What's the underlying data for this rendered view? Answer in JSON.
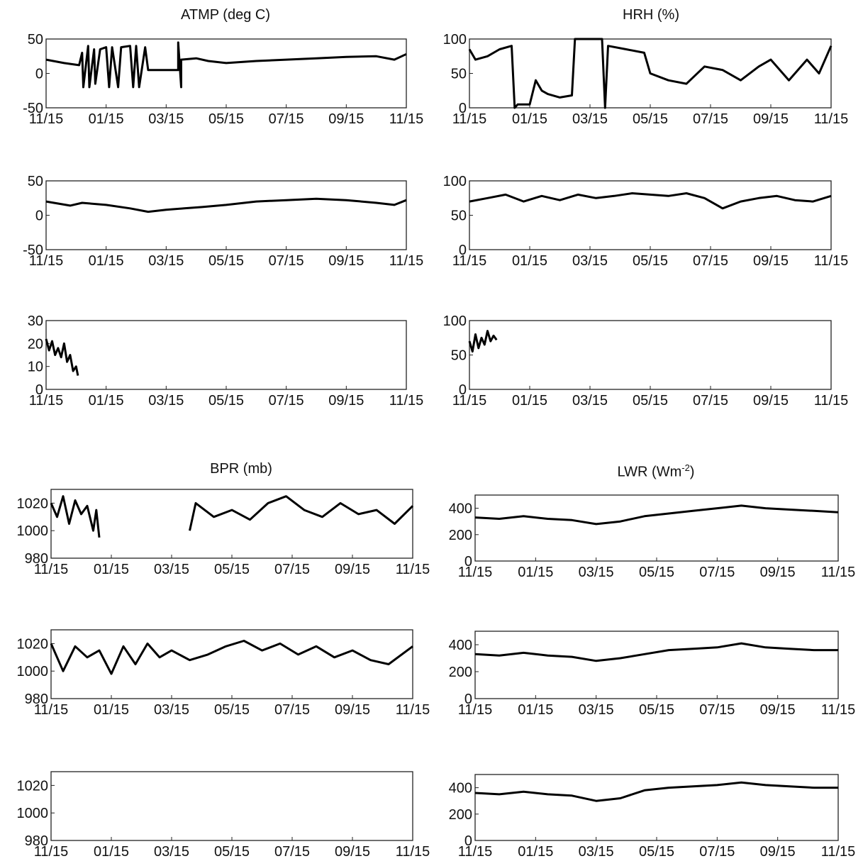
{
  "titles": {
    "atmp": "ATMP (deg C)",
    "hrh": "HRH (%)",
    "bpr": "BPR (mb)",
    "lwr_base": "LWR (Wm",
    "lwr_sup": "-2",
    "lwr_close": ")"
  },
  "chart_data": [
    {
      "id": "atmp1",
      "type": "line",
      "x": [
        "11/15",
        "01/15",
        "03/15",
        "05/15",
        "07/15",
        "09/15",
        "11/15"
      ],
      "ylim": [
        -50,
        50
      ],
      "yticks": [
        "50",
        "0",
        "-50"
      ],
      "series": [
        {
          "points": [
            [
              0,
              20
            ],
            [
              0.3,
              15
            ],
            [
              0.55,
              12
            ],
            [
              0.6,
              30
            ],
            [
              0.62,
              -20
            ],
            [
              0.7,
              40
            ],
            [
              0.72,
              -20
            ],
            [
              0.8,
              35
            ],
            [
              0.82,
              -15
            ],
            [
              0.9,
              35
            ],
            [
              1.0,
              38
            ],
            [
              1.05,
              -20
            ],
            [
              1.1,
              38
            ],
            [
              1.2,
              -20
            ],
            [
              1.25,
              38
            ],
            [
              1.4,
              40
            ],
            [
              1.45,
              -20
            ],
            [
              1.5,
              40
            ],
            [
              1.55,
              -20
            ],
            [
              1.65,
              38
            ],
            [
              1.7,
              5
            ],
            [
              2.2,
              5
            ],
            [
              2.2,
              45
            ],
            [
              2.25,
              -20
            ],
            [
              2.25,
              20
            ],
            [
              2.5,
              22
            ],
            [
              2.7,
              18
            ],
            [
              3.0,
              15
            ],
            [
              3.5,
              18
            ],
            [
              4.0,
              20
            ],
            [
              4.5,
              22
            ],
            [
              5.0,
              24
            ],
            [
              5.5,
              25
            ],
            [
              5.8,
              20
            ],
            [
              6.0,
              28
            ]
          ]
        }
      ]
    },
    {
      "id": "atmp2",
      "type": "line",
      "x": [
        "11/15",
        "01/15",
        "03/15",
        "05/15",
        "07/15",
        "09/15",
        "11/15"
      ],
      "ylim": [
        -50,
        50
      ],
      "yticks": [
        "50",
        "0",
        "-50"
      ],
      "series": [
        {
          "points": [
            [
              0,
              20
            ],
            [
              0.4,
              14
            ],
            [
              0.6,
              18
            ],
            [
              1.0,
              15
            ],
            [
              1.4,
              10
            ],
            [
              1.7,
              5
            ],
            [
              2.0,
              8
            ],
            [
              2.3,
              10
            ],
            [
              2.6,
              12
            ],
            [
              3.0,
              15
            ],
            [
              3.5,
              20
            ],
            [
              4.0,
              22
            ],
            [
              4.5,
              24
            ],
            [
              5.0,
              22
            ],
            [
              5.5,
              18
            ],
            [
              5.8,
              15
            ],
            [
              6.0,
              22
            ]
          ]
        }
      ]
    },
    {
      "id": "atmp3",
      "type": "line",
      "x": [
        "11/15",
        "01/15",
        "03/15",
        "05/15",
        "07/15",
        "09/15",
        "11/15"
      ],
      "ylim": [
        0,
        30
      ],
      "yticks": [
        "30",
        "20",
        "10",
        "0"
      ],
      "series": [
        {
          "points": [
            [
              0,
              22
            ],
            [
              0.05,
              17
            ],
            [
              0.1,
              21
            ],
            [
              0.15,
              15
            ],
            [
              0.2,
              18
            ],
            [
              0.25,
              14
            ],
            [
              0.3,
              20
            ],
            [
              0.35,
              12
            ],
            [
              0.4,
              15
            ],
            [
              0.45,
              8
            ],
            [
              0.5,
              10
            ],
            [
              0.53,
              6
            ]
          ]
        }
      ]
    },
    {
      "id": "hrh1",
      "type": "line",
      "x": [
        "11/15",
        "01/15",
        "03/15",
        "05/15",
        "07/15",
        "09/15",
        "11/15"
      ],
      "ylim": [
        0,
        100
      ],
      "yticks": [
        "100",
        "50",
        "0"
      ],
      "series": [
        {
          "points": [
            [
              0,
              85
            ],
            [
              0.1,
              70
            ],
            [
              0.3,
              75
            ],
            [
              0.5,
              85
            ],
            [
              0.7,
              90
            ],
            [
              0.75,
              0
            ],
            [
              0.8,
              5
            ],
            [
              1.0,
              5
            ],
            [
              1.1,
              40
            ],
            [
              1.2,
              25
            ],
            [
              1.3,
              20
            ],
            [
              1.5,
              15
            ],
            [
              1.7,
              18
            ],
            [
              1.75,
              110
            ],
            [
              2.2,
              110
            ],
            [
              2.25,
              0
            ],
            [
              2.3,
              90
            ],
            [
              2.6,
              85
            ],
            [
              2.9,
              80
            ],
            [
              3.0,
              50
            ],
            [
              3.3,
              40
            ],
            [
              3.6,
              35
            ],
            [
              3.9,
              60
            ],
            [
              4.2,
              55
            ],
            [
              4.5,
              40
            ],
            [
              4.8,
              60
            ],
            [
              5.0,
              70
            ],
            [
              5.3,
              40
            ],
            [
              5.6,
              70
            ],
            [
              5.8,
              50
            ],
            [
              6.0,
              90
            ]
          ]
        }
      ]
    },
    {
      "id": "hrh2",
      "type": "line",
      "x": [
        "11/15",
        "01/15",
        "03/15",
        "05/15",
        "07/15",
        "09/15",
        "11/15"
      ],
      "ylim": [
        0,
        100
      ],
      "yticks": [
        "100",
        "50",
        "0"
      ],
      "series": [
        {
          "points": [
            [
              0,
              70
            ],
            [
              0.3,
              75
            ],
            [
              0.6,
              80
            ],
            [
              0.9,
              70
            ],
            [
              1.2,
              78
            ],
            [
              1.5,
              72
            ],
            [
              1.8,
              80
            ],
            [
              2.1,
              75
            ],
            [
              2.4,
              78
            ],
            [
              2.7,
              82
            ],
            [
              3.0,
              80
            ],
            [
              3.3,
              78
            ],
            [
              3.6,
              82
            ],
            [
              3.9,
              75
            ],
            [
              4.2,
              60
            ],
            [
              4.5,
              70
            ],
            [
              4.8,
              75
            ],
            [
              5.1,
              78
            ],
            [
              5.4,
              72
            ],
            [
              5.7,
              70
            ],
            [
              6.0,
              78
            ]
          ]
        }
      ]
    },
    {
      "id": "hrh3",
      "type": "line",
      "x": [
        "11/15",
        "01/15",
        "03/15",
        "05/15",
        "07/15",
        "09/15",
        "11/15"
      ],
      "ylim": [
        0,
        100
      ],
      "yticks": [
        "100",
        "50",
        "0"
      ],
      "series": [
        {
          "points": [
            [
              0,
              70
            ],
            [
              0.05,
              55
            ],
            [
              0.1,
              80
            ],
            [
              0.15,
              60
            ],
            [
              0.2,
              75
            ],
            [
              0.25,
              65
            ],
            [
              0.3,
              85
            ],
            [
              0.35,
              70
            ],
            [
              0.4,
              78
            ],
            [
              0.45,
              72
            ]
          ]
        }
      ]
    },
    {
      "id": "bpr1",
      "type": "line",
      "x": [
        "11/15",
        "01/15",
        "03/15",
        "05/15",
        "07/15",
        "09/15",
        "11/15"
      ],
      "ylim": [
        980,
        1030
      ],
      "yticks": [
        "1020",
        "1000",
        "980"
      ],
      "series": [
        {
          "points": [
            [
              0,
              1020
            ],
            [
              0.1,
              1010
            ],
            [
              0.2,
              1025
            ],
            [
              0.3,
              1005
            ],
            [
              0.4,
              1022
            ],
            [
              0.5,
              1012
            ],
            [
              0.6,
              1018
            ],
            [
              0.7,
              1000
            ],
            [
              0.75,
              1015
            ],
            [
              0.8,
              995
            ]
          ]
        },
        {
          "points": [
            [
              2.3,
              1000
            ],
            [
              2.4,
              1020
            ],
            [
              2.7,
              1010
            ],
            [
              3.0,
              1015
            ],
            [
              3.3,
              1008
            ],
            [
              3.6,
              1020
            ],
            [
              3.9,
              1025
            ],
            [
              4.2,
              1015
            ],
            [
              4.5,
              1010
            ],
            [
              4.8,
              1020
            ],
            [
              5.1,
              1012
            ],
            [
              5.4,
              1015
            ],
            [
              5.7,
              1005
            ],
            [
              6.0,
              1018
            ]
          ]
        }
      ]
    },
    {
      "id": "bpr2",
      "type": "line",
      "x": [
        "11/15",
        "01/15",
        "03/15",
        "05/15",
        "07/15",
        "09/15",
        "11/15"
      ],
      "ylim": [
        980,
        1030
      ],
      "yticks": [
        "1020",
        "1000",
        "980"
      ],
      "series": [
        {
          "points": [
            [
              0,
              1020
            ],
            [
              0.2,
              1000
            ],
            [
              0.4,
              1018
            ],
            [
              0.6,
              1010
            ],
            [
              0.8,
              1015
            ],
            [
              1.0,
              998
            ],
            [
              1.2,
              1018
            ],
            [
              1.4,
              1005
            ],
            [
              1.6,
              1020
            ],
            [
              1.8,
              1010
            ],
            [
              2.0,
              1015
            ],
            [
              2.3,
              1008
            ],
            [
              2.6,
              1012
            ],
            [
              2.9,
              1018
            ],
            [
              3.2,
              1022
            ],
            [
              3.5,
              1015
            ],
            [
              3.8,
              1020
            ],
            [
              4.1,
              1012
            ],
            [
              4.4,
              1018
            ],
            [
              4.7,
              1010
            ],
            [
              5.0,
              1015
            ],
            [
              5.3,
              1008
            ],
            [
              5.6,
              1005
            ],
            [
              6.0,
              1018
            ]
          ]
        }
      ]
    },
    {
      "id": "bpr3",
      "type": "line",
      "x": [
        "11/15",
        "01/15",
        "03/15",
        "05/15",
        "07/15",
        "09/15",
        "11/15"
      ],
      "ylim": [
        980,
        1030
      ],
      "yticks": [
        "1020",
        "1000",
        "980"
      ],
      "series": []
    },
    {
      "id": "lwr1",
      "type": "line",
      "x": [
        "11/15",
        "01/15",
        "03/15",
        "05/15",
        "07/15",
        "09/15",
        "11/15"
      ],
      "ylim": [
        0,
        500
      ],
      "yticks": [
        "400",
        "200",
        "0"
      ],
      "series": [
        {
          "points": [
            [
              0,
              330
            ],
            [
              0.4,
              320
            ],
            [
              0.8,
              340
            ],
            [
              1.2,
              320
            ],
            [
              1.6,
              310
            ],
            [
              2.0,
              280
            ],
            [
              2.4,
              300
            ],
            [
              2.8,
              340
            ],
            [
              3.2,
              360
            ],
            [
              3.6,
              380
            ],
            [
              4.0,
              400
            ],
            [
              4.4,
              420
            ],
            [
              4.8,
              400
            ],
            [
              5.2,
              390
            ],
            [
              5.6,
              380
            ],
            [
              6.0,
              370
            ]
          ]
        }
      ]
    },
    {
      "id": "lwr2",
      "type": "line",
      "x": [
        "11/15",
        "01/15",
        "03/15",
        "05/15",
        "07/15",
        "09/15",
        "11/15"
      ],
      "ylim": [
        0,
        500
      ],
      "yticks": [
        "400",
        "200",
        "0"
      ],
      "series": [
        {
          "points": [
            [
              0,
              330
            ],
            [
              0.4,
              320
            ],
            [
              0.8,
              340
            ],
            [
              1.2,
              320
            ],
            [
              1.6,
              310
            ],
            [
              2.0,
              280
            ],
            [
              2.4,
              300
            ],
            [
              2.8,
              330
            ],
            [
              3.2,
              360
            ],
            [
              3.6,
              370
            ],
            [
              4.0,
              380
            ],
            [
              4.4,
              410
            ],
            [
              4.8,
              380
            ],
            [
              5.2,
              370
            ],
            [
              5.6,
              360
            ],
            [
              6.0,
              360
            ]
          ]
        }
      ]
    },
    {
      "id": "lwr3",
      "type": "line",
      "x": [
        "11/15",
        "01/15",
        "03/15",
        "05/15",
        "07/15",
        "09/15",
        "11/15"
      ],
      "ylim": [
        0,
        500
      ],
      "yticks": [
        "400",
        "200",
        "0"
      ],
      "series": [
        {
          "points": [
            [
              0,
              360
            ],
            [
              0.4,
              350
            ],
            [
              0.8,
              370
            ],
            [
              1.2,
              350
            ],
            [
              1.6,
              340
            ],
            [
              2.0,
              300
            ],
            [
              2.4,
              320
            ],
            [
              2.8,
              380
            ],
            [
              3.2,
              400
            ],
            [
              3.6,
              410
            ],
            [
              4.0,
              420
            ],
            [
              4.4,
              440
            ],
            [
              4.8,
              420
            ],
            [
              5.2,
              410
            ],
            [
              5.6,
              400
            ],
            [
              6.0,
              400
            ]
          ]
        }
      ]
    }
  ]
}
